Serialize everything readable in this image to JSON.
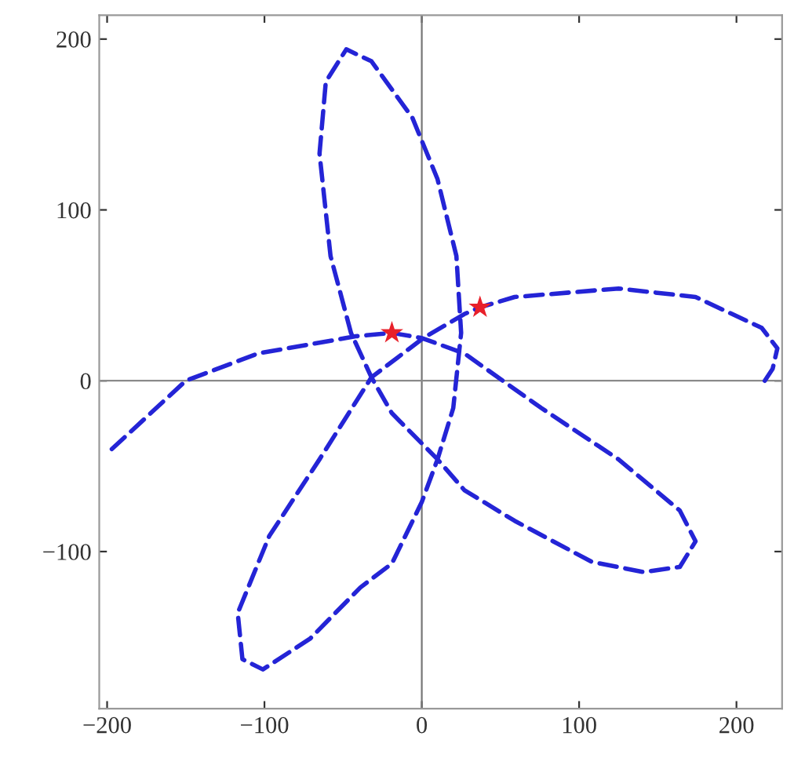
{
  "chart_data": {
    "type": "line",
    "xlim": [
      -205,
      229
    ],
    "ylim": [
      -192,
      214
    ],
    "xticks": [
      -200,
      -100,
      0,
      100,
      200
    ],
    "yticks": [
      -100,
      0,
      100,
      200
    ],
    "grid": false,
    "legend": false,
    "line_style": "dashed",
    "marker": "none",
    "series": [
      {
        "color": "#2424d6",
        "x": [
          -197,
          -150,
          -104,
          -42,
          -19,
          0,
          27,
          76,
          125,
          164,
          174,
          164,
          141,
          108,
          59,
          27,
          10,
          -19,
          -32,
          -45,
          -58,
          -65,
          -61,
          -48,
          -32,
          -6,
          10,
          22,
          25,
          20,
          10,
          0,
          -19,
          -39,
          -71,
          -101,
          -114,
          -117,
          -97,
          -65,
          -32,
          1,
          27,
          37,
          59,
          125,
          174,
          216,
          226,
          223,
          218
        ],
        "values": [
          -40,
          0,
          16,
          26,
          28,
          25,
          16,
          -16,
          -46,
          -76,
          -94,
          -109,
          -112,
          -106,
          -82,
          -64,
          -46,
          -19,
          2,
          28,
          73,
          133,
          175,
          194,
          187,
          154,
          118,
          73,
          28,
          -16,
          -46,
          -71,
          -107,
          -121,
          -151,
          -169,
          -163,
          -136,
          -91,
          -46,
          2,
          25,
          39,
          43,
          49,
          54,
          49,
          31,
          19,
          7,
          0
        ]
      },
      {
        "type": "scatter",
        "color": "#e8202a",
        "marker": "star",
        "x": [
          -19,
          37
        ],
        "values": [
          28,
          43
        ]
      }
    ],
    "ref_lines": [
      {
        "axis": "x",
        "value": 0,
        "color": "#777777"
      },
      {
        "axis": "y",
        "value": 0,
        "color": "#8a8a8a"
      }
    ]
  }
}
